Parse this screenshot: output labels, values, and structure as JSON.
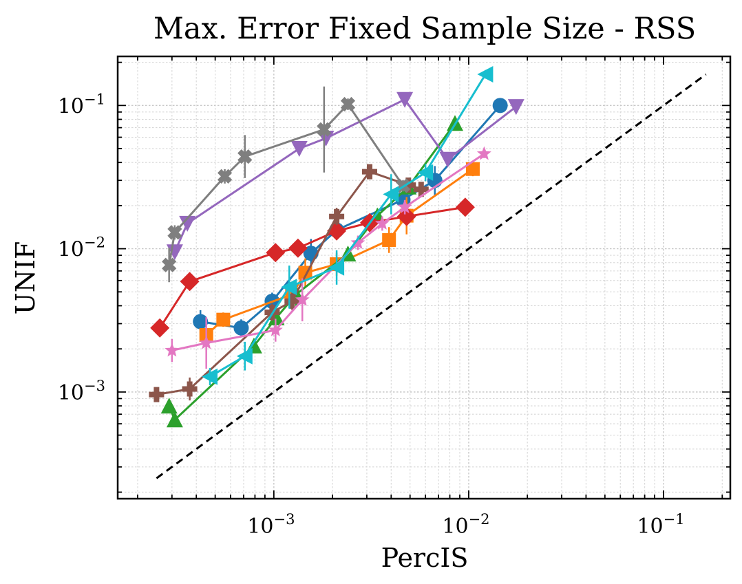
{
  "chart_data": {
    "type": "scatter",
    "title": "Max. Error Fixed Sample Size - RSS",
    "xlabel": "PercIS",
    "ylabel": "UNIF",
    "xscale": "log",
    "yscale": "log",
    "xlim": [
      0.000158,
      0.22
    ],
    "ylim": [
      0.00018,
      0.22
    ],
    "grid": true,
    "x_ticks": [
      {
        "value": 0.001,
        "base": "10",
        "exp": "−3"
      },
      {
        "value": 0.01,
        "base": "10",
        "exp": "−2"
      },
      {
        "value": 0.1,
        "base": "10",
        "exp": "−1"
      }
    ],
    "y_ticks": [
      {
        "value": 0.001,
        "base": "10",
        "exp": "−3"
      },
      {
        "value": 0.01,
        "base": "10",
        "exp": "−2"
      },
      {
        "value": 0.1,
        "base": "10",
        "exp": "−1"
      }
    ],
    "reference_line": {
      "x": [
        0.00025,
        0.165
      ],
      "y": [
        0.00025,
        0.165
      ],
      "color": "#000000",
      "style": "dashed"
    },
    "series": [
      {
        "name": "series-blue-circle",
        "color": "#1f77b4",
        "marker": "circle",
        "points": [
          [
            0.00042,
            0.0031
          ],
          [
            0.00068,
            0.0028
          ],
          [
            0.00098,
            0.0043
          ],
          [
            0.00155,
            0.0093
          ],
          [
            0.0021,
            0.0135
          ],
          [
            0.0046,
            0.022
          ],
          [
            0.0067,
            0.03
          ],
          [
            0.0145,
            0.1
          ]
        ],
        "errors": [
          0.08,
          0.06,
          0.06,
          0.1,
          0.05,
          0.1,
          0.1,
          0.03
        ]
      },
      {
        "name": "series-orange-square",
        "color": "#ff7f0e",
        "marker": "square",
        "points": [
          [
            0.00045,
            0.0025
          ],
          [
            0.00055,
            0.0032
          ],
          [
            0.00124,
            0.0048
          ],
          [
            0.00145,
            0.0068
          ],
          [
            0.0021,
            0.0078
          ],
          [
            0.0039,
            0.0115
          ],
          [
            0.0048,
            0.017
          ],
          [
            0.0105,
            0.036
          ]
        ],
        "errors": [
          0.05,
          0.05,
          0.05,
          0.1,
          0.08,
          0.09,
          0.13,
          0.05
        ]
      },
      {
        "name": "series-green-triangle-up",
        "color": "#2ca02c",
        "marker": "triangle-up",
        "points": [
          [
            0.00029,
            0.0008
          ],
          [
            0.00031,
            0.00064
          ],
          [
            0.00079,
            0.0021
          ],
          [
            0.00103,
            0.0033
          ],
          [
            0.0013,
            0.0048
          ],
          [
            0.0024,
            0.0092
          ],
          [
            0.0034,
            0.017
          ],
          [
            0.0049,
            0.027
          ],
          [
            0.0085,
            0.075
          ]
        ],
        "errors": [
          0.04,
          0.04,
          0.04,
          0.05,
          0.08,
          0.05,
          0.05,
          0.05,
          0.04
        ]
      },
      {
        "name": "series-red-diamond",
        "color": "#d62728",
        "marker": "diamond",
        "points": [
          [
            0.00026,
            0.0028
          ],
          [
            0.00037,
            0.0059
          ],
          [
            0.00102,
            0.0094
          ],
          [
            0.00133,
            0.0101
          ],
          [
            0.0021,
            0.0133
          ],
          [
            0.0031,
            0.0152
          ],
          [
            0.0048,
            0.0168
          ],
          [
            0.0096,
            0.0195
          ]
        ],
        "errors": [
          0.04,
          0.04,
          0.04,
          0.04,
          0.04,
          0.04,
          0.04,
          0.04
        ]
      },
      {
        "name": "series-purple-triangle-down",
        "color": "#9467bd",
        "marker": "triangle-down",
        "points": [
          [
            0.00031,
            0.0095
          ],
          [
            0.00036,
            0.015
          ],
          [
            0.00135,
            0.05
          ],
          [
            0.00185,
            0.059
          ],
          [
            0.0047,
            0.11
          ],
          [
            0.0078,
            0.042
          ],
          [
            0.0175,
            0.098
          ]
        ],
        "errors": [
          0.04,
          0.04,
          0.04,
          0.04,
          0.04,
          0.04,
          0.04
        ]
      },
      {
        "name": "series-brown-plus",
        "color": "#8c564b",
        "marker": "plus",
        "points": [
          [
            0.00025,
            0.00096
          ],
          [
            0.00037,
            0.00105
          ],
          [
            0.00098,
            0.0036
          ],
          [
            0.00124,
            0.0043
          ],
          [
            0.0021,
            0.0168
          ],
          [
            0.0031,
            0.0345
          ],
          [
            0.0049,
            0.0278
          ],
          [
            0.0057,
            0.026
          ]
        ],
        "errors": [
          0.04,
          0.08,
          0.06,
          0.06,
          0.06,
          0.05,
          0.05,
          0.05
        ]
      },
      {
        "name": "series-pink-star",
        "color": "#e377c2",
        "marker": "star",
        "points": [
          [
            0.0003,
            0.00195
          ],
          [
            0.00045,
            0.0022
          ],
          [
            0.00102,
            0.0027
          ],
          [
            0.0014,
            0.0044
          ],
          [
            0.0027,
            0.011
          ],
          [
            0.0036,
            0.015
          ],
          [
            0.0047,
            0.0195
          ],
          [
            0.012,
            0.046
          ]
        ],
        "errors": [
          0.08,
          0.18,
          0.08,
          0.15,
          0.05,
          0.05,
          0.05,
          0.03
        ]
      },
      {
        "name": "series-gray-cross",
        "color": "#7f7f7f",
        "marker": "cross",
        "points": [
          [
            0.00029,
            0.0077
          ],
          [
            0.00031,
            0.013
          ],
          [
            0.00056,
            0.032
          ],
          [
            0.00071,
            0.044
          ],
          [
            0.00181,
            0.068
          ],
          [
            0.0024,
            0.102
          ],
          [
            0.0046,
            0.0275
          ]
        ],
        "errors": [
          0.12,
          0.05,
          0.05,
          0.15,
          0.3,
          0.04,
          0.04
        ]
      },
      {
        "name": "series-cyan-triangle-left",
        "color": "#17becf",
        "marker": "triangle-left",
        "points": [
          [
            0.00047,
            0.00128
          ],
          [
            0.00071,
            0.00178
          ],
          [
            0.0012,
            0.0054
          ],
          [
            0.0021,
            0.0074
          ],
          [
            0.004,
            0.024
          ],
          [
            0.006,
            0.034
          ],
          [
            0.0122,
            0.165
          ]
        ],
        "errors": [
          0.06,
          0.1,
          0.15,
          0.12,
          0.14,
          0.06,
          0.03
        ]
      }
    ]
  }
}
